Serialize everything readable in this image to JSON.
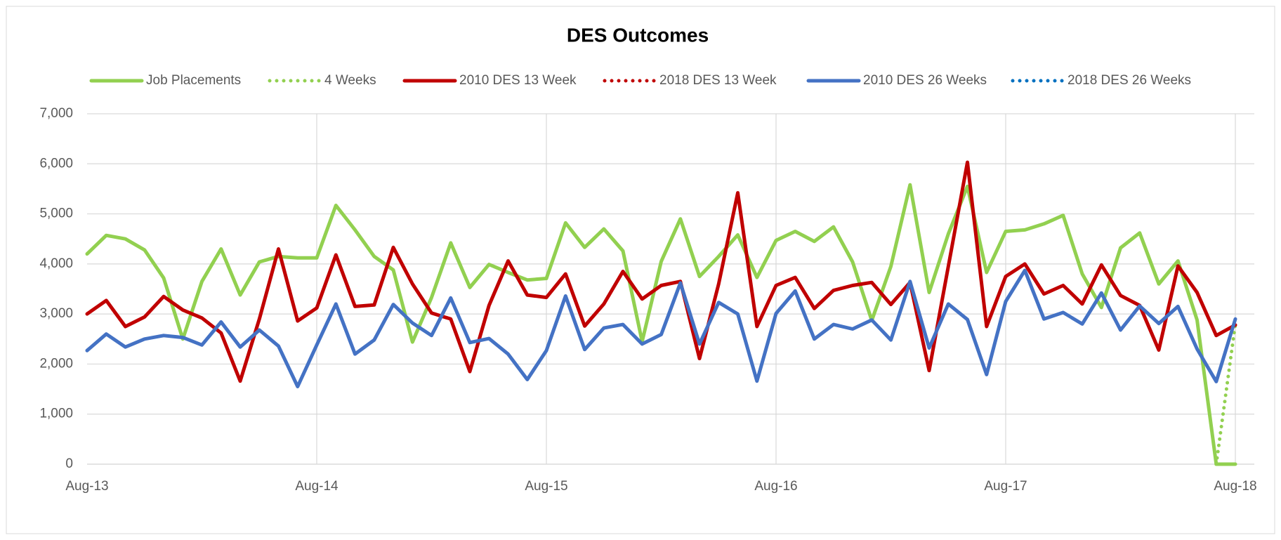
{
  "chart_data": {
    "type": "line",
    "title": "DES Outcomes",
    "categories": [
      "Aug-13",
      null,
      null,
      null,
      null,
      null,
      null,
      null,
      null,
      null,
      null,
      null,
      "Aug-14",
      null,
      null,
      null,
      null,
      null,
      null,
      null,
      null,
      null,
      null,
      null,
      "Aug-15",
      null,
      null,
      null,
      null,
      null,
      null,
      null,
      null,
      null,
      null,
      null,
      "Aug-16",
      null,
      null,
      null,
      null,
      null,
      null,
      null,
      null,
      null,
      null,
      null,
      "Aug-17",
      null,
      null,
      null,
      null,
      null,
      null,
      null,
      null,
      null,
      null,
      null,
      "Aug-18"
    ],
    "series": [
      {
        "name": "Job Placements",
        "color": "#92d050",
        "style": "solid",
        "values": [
          4200,
          4570,
          4500,
          4280,
          3720,
          2500,
          3650,
          4300,
          3380,
          4040,
          4150,
          4120,
          4120,
          5170,
          4680,
          4150,
          3880,
          2440,
          3330,
          4420,
          3530,
          3990,
          3830,
          3680,
          3710,
          4820,
          4330,
          4700,
          4260,
          2450,
          4050,
          4900,
          3750,
          4150,
          4580,
          3730,
          4470,
          4650,
          4450,
          4740,
          4040,
          2870,
          3950,
          5580,
          3430,
          4600,
          5550,
          3830,
          4650,
          4680,
          4800,
          4970,
          3800,
          3130,
          4320,
          4620,
          3600,
          4060,
          2880,
          0,
          0
        ]
      },
      {
        "name": "4 Weeks",
        "color": "#92d050",
        "style": "dotted",
        "values": [
          null,
          null,
          null,
          null,
          null,
          null,
          null,
          null,
          null,
          null,
          null,
          null,
          null,
          null,
          null,
          null,
          null,
          null,
          null,
          null,
          null,
          null,
          null,
          null,
          null,
          null,
          null,
          null,
          null,
          null,
          null,
          null,
          null,
          null,
          null,
          null,
          null,
          null,
          null,
          null,
          null,
          null,
          null,
          null,
          null,
          null,
          null,
          null,
          null,
          null,
          null,
          null,
          null,
          null,
          null,
          null,
          null,
          null,
          null,
          0,
          2800
        ]
      },
      {
        "name": "2010 DES 13 Week",
        "color": "#c00000",
        "style": "solid",
        "values": [
          3000,
          3270,
          2750,
          2940,
          3350,
          3080,
          2920,
          2620,
          1660,
          2900,
          4300,
          2860,
          3120,
          4180,
          3150,
          3180,
          4330,
          3600,
          3020,
          2900,
          1850,
          3170,
          4060,
          3380,
          3330,
          3800,
          2760,
          3200,
          3850,
          3300,
          3570,
          3650,
          2110,
          3600,
          5420,
          2750,
          3570,
          3730,
          3110,
          3470,
          3570,
          3630,
          3190,
          3630,
          1870,
          3950,
          6030,
          2750,
          3750,
          4000,
          3400,
          3570,
          3200,
          3980,
          3370,
          3170,
          2280,
          3960,
          3430,
          2570,
          2780
        ]
      },
      {
        "name": "2018 DES 13 Week",
        "color": "#c00000",
        "style": "dotted",
        "values": [
          null,
          null,
          null,
          null,
          null,
          null,
          null,
          null,
          null,
          null,
          null,
          null,
          null,
          null,
          null,
          null,
          null,
          null,
          null,
          null,
          null,
          null,
          null,
          null,
          null,
          null,
          null,
          null,
          null,
          null,
          null,
          null,
          null,
          null,
          null,
          null,
          null,
          null,
          null,
          null,
          null,
          null,
          null,
          null,
          null,
          null,
          null,
          null,
          null,
          null,
          null,
          null,
          null,
          null,
          null,
          null,
          null,
          null,
          null,
          null,
          2780
        ]
      },
      {
        "name": "2010 DES 26 Weeks",
        "color": "#4472c4",
        "style": "solid",
        "values": [
          2270,
          2600,
          2340,
          2500,
          2570,
          2530,
          2380,
          2840,
          2340,
          2680,
          2360,
          1550,
          2380,
          3200,
          2200,
          2480,
          3190,
          2820,
          2570,
          3320,
          2430,
          2510,
          2200,
          1690,
          2270,
          3360,
          2290,
          2720,
          2790,
          2400,
          2590,
          3620,
          2400,
          3230,
          3000,
          1660,
          3010,
          3460,
          2500,
          2790,
          2700,
          2880,
          2480,
          3650,
          2320,
          3200,
          2890,
          1790,
          3250,
          3870,
          2900,
          3030,
          2800,
          3420,
          2680,
          3160,
          2810,
          3150,
          2300,
          1650,
          2900
        ]
      },
      {
        "name": "2018 DES 26 Weeks",
        "color": "#0070c0",
        "style": "dotted",
        "values": [
          null,
          null,
          null,
          null,
          null,
          null,
          null,
          null,
          null,
          null,
          null,
          null,
          null,
          null,
          null,
          null,
          null,
          null,
          null,
          null,
          null,
          null,
          null,
          null,
          null,
          null,
          null,
          null,
          null,
          null,
          null,
          null,
          null,
          null,
          null,
          null,
          null,
          null,
          null,
          null,
          null,
          null,
          null,
          null,
          null,
          null,
          null,
          null,
          null,
          null,
          null,
          null,
          null,
          null,
          null,
          null,
          null,
          null,
          null,
          null,
          2900
        ]
      }
    ],
    "ylim": [
      0,
      7000
    ],
    "yticks": [
      0,
      {
        "value": 1000,
        "label": "1,000"
      },
      {
        "value": 2000,
        "label": "2,000"
      },
      {
        "value": 3000,
        "label": "3,000"
      },
      {
        "value": 4000,
        "label": "4,000"
      },
      {
        "value": 5000,
        "label": "5,000"
      },
      {
        "value": 6000,
        "label": "6,000"
      },
      {
        "value": 7000,
        "label": "7,000"
      }
    ],
    "grid": true,
    "legend": "top"
  }
}
